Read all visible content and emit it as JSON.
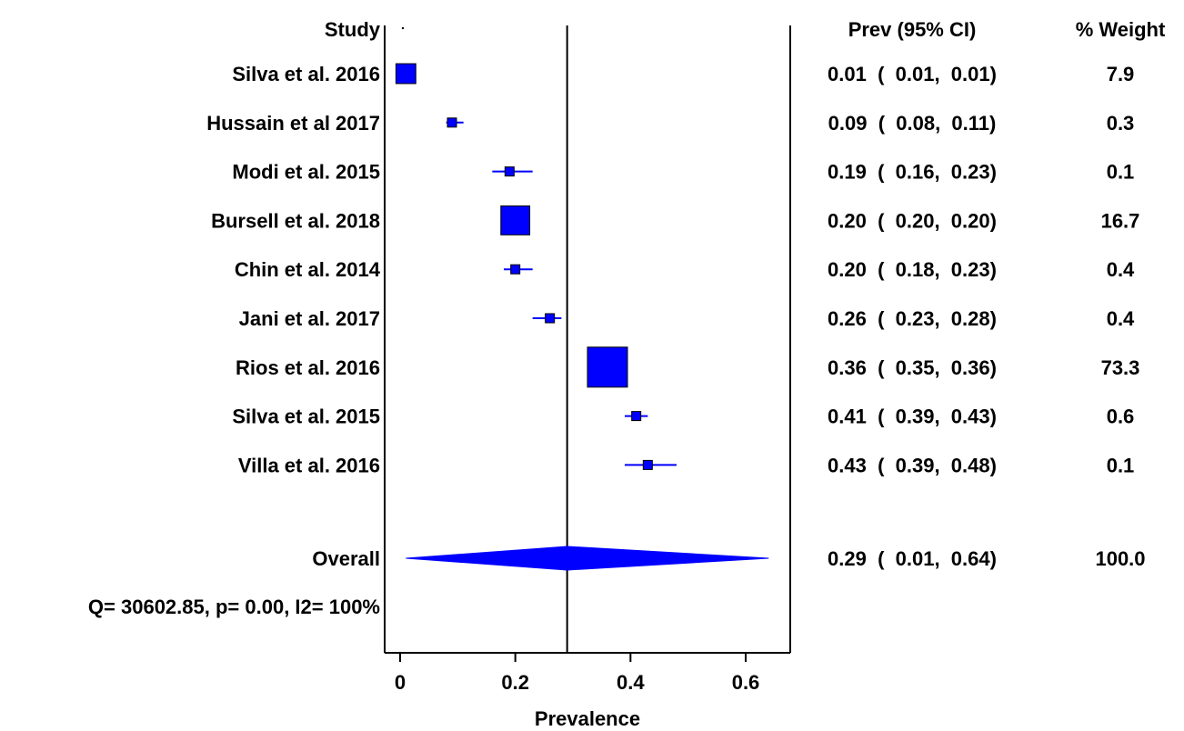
{
  "chart_data": {
    "type": "forest",
    "title": "",
    "xlabel": "Prevalence",
    "ylabel": "",
    "xlim": [
      0,
      0.64
    ],
    "x_ticks": [
      0,
      0.2,
      0.4,
      0.6
    ],
    "x_tick_labels": [
      "0",
      "0.2",
      "0.4",
      "0.6"
    ],
    "study_header": "Study",
    "estimate_header": "Prev (95% CI)",
    "weight_header": "% Weight",
    "reference_line": 0.29,
    "studies": [
      {
        "label": "Silva et al. 2016",
        "estimate": 0.01,
        "lower": 0.01,
        "upper": 0.01,
        "ci_text": "0.01  (  0.01,  0.01)",
        "weight": "7.9"
      },
      {
        "label": "Hussain et al 2017",
        "estimate": 0.09,
        "lower": 0.08,
        "upper": 0.11,
        "ci_text": "0.09  (  0.08,  0.11)",
        "weight": "0.3"
      },
      {
        "label": "Modi et al. 2015",
        "estimate": 0.19,
        "lower": 0.16,
        "upper": 0.23,
        "ci_text": "0.19  (  0.16,  0.23)",
        "weight": "0.1"
      },
      {
        "label": "Bursell et al. 2018",
        "estimate": 0.2,
        "lower": 0.2,
        "upper": 0.2,
        "ci_text": "0.20  (  0.20,  0.20)",
        "weight": "16.7"
      },
      {
        "label": "Chin et al. 2014",
        "estimate": 0.2,
        "lower": 0.18,
        "upper": 0.23,
        "ci_text": "0.20  (  0.18,  0.23)",
        "weight": "0.4"
      },
      {
        "label": "Jani et al. 2017",
        "estimate": 0.26,
        "lower": 0.23,
        "upper": 0.28,
        "ci_text": "0.26  (  0.23,  0.28)",
        "weight": "0.4"
      },
      {
        "label": "Rios et al. 2016",
        "estimate": 0.36,
        "lower": 0.35,
        "upper": 0.36,
        "ci_text": "0.36  (  0.35,  0.36)",
        "weight": "73.3"
      },
      {
        "label": "Silva et al. 2015",
        "estimate": 0.41,
        "lower": 0.39,
        "upper": 0.43,
        "ci_text": "0.41  (  0.39,  0.43)",
        "weight": "0.6"
      },
      {
        "label": "Villa et al. 2016",
        "estimate": 0.43,
        "lower": 0.39,
        "upper": 0.48,
        "ci_text": "0.43  (  0.39,  0.48)",
        "weight": "0.1"
      }
    ],
    "overall": {
      "label": "Overall",
      "estimate": 0.29,
      "lower": 0.01,
      "upper": 0.64,
      "ci_text": "0.29  (  0.01,  0.64)",
      "weight": "100.0"
    },
    "heterogeneity": "Q= 30602.85, p= 0.00, I2= 100%",
    "colors": {
      "marker": "#0000ff",
      "line": "#000000"
    }
  }
}
